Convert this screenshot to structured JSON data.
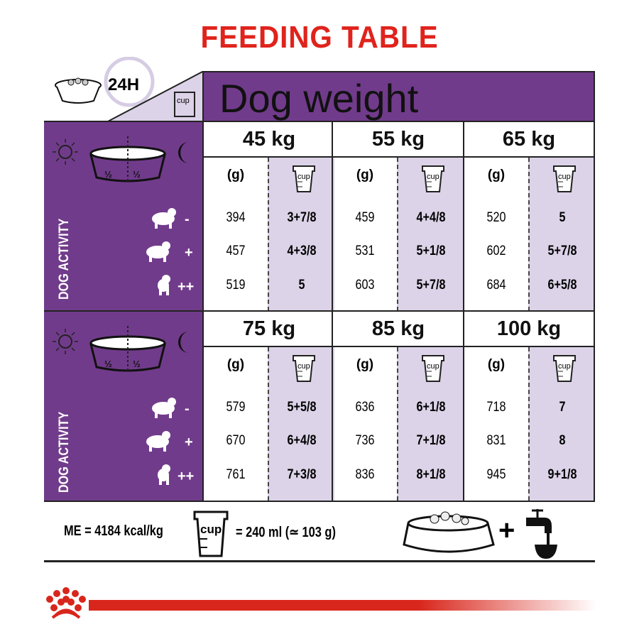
{
  "title": "FEEDING TABLE",
  "header": {
    "label": "Dog weight",
    "duration": "24H",
    "cup_label": "cup"
  },
  "side": {
    "label": "DOG ACTIVITY",
    "half": "½",
    "activity_levels": [
      "-",
      "+",
      "++"
    ]
  },
  "column_labels": {
    "grams": "(g)",
    "cups": "cup"
  },
  "blocks": [
    {
      "weights": [
        {
          "label": "45 kg",
          "rows": [
            [
              "394",
              "3+7/8"
            ],
            [
              "457",
              "4+3/8"
            ],
            [
              "519",
              "5"
            ]
          ]
        },
        {
          "label": "55 kg",
          "rows": [
            [
              "459",
              "4+4/8"
            ],
            [
              "531",
              "5+1/8"
            ],
            [
              "603",
              "5+7/8"
            ]
          ]
        },
        {
          "label": "65 kg",
          "rows": [
            [
              "520",
              "5"
            ],
            [
              "602",
              "5+7/8"
            ],
            [
              "684",
              "6+5/8"
            ]
          ]
        }
      ]
    },
    {
      "weights": [
        {
          "label": "75 kg",
          "rows": [
            [
              "579",
              "5+5/8"
            ],
            [
              "670",
              "6+4/8"
            ],
            [
              "761",
              "7+3/8"
            ]
          ]
        },
        {
          "label": "85 kg",
          "rows": [
            [
              "636",
              "6+1/8"
            ],
            [
              "736",
              "7+1/8"
            ],
            [
              "836",
              "8+1/8"
            ]
          ]
        },
        {
          "label": "100 kg",
          "rows": [
            [
              "718",
              "7"
            ],
            [
              "831",
              "8"
            ],
            [
              "945",
              "9+1/8"
            ]
          ]
        }
      ]
    }
  ],
  "footer": {
    "energy": "ME = 4184 kcal/kg",
    "cup_label": "cup",
    "cup_equiv": "= 240 ml (≃ 103 g)",
    "plus": "+"
  },
  "colors": {
    "purple": "#713b8b",
    "lavender": "#dcd3e8",
    "red": "#e0231c"
  }
}
